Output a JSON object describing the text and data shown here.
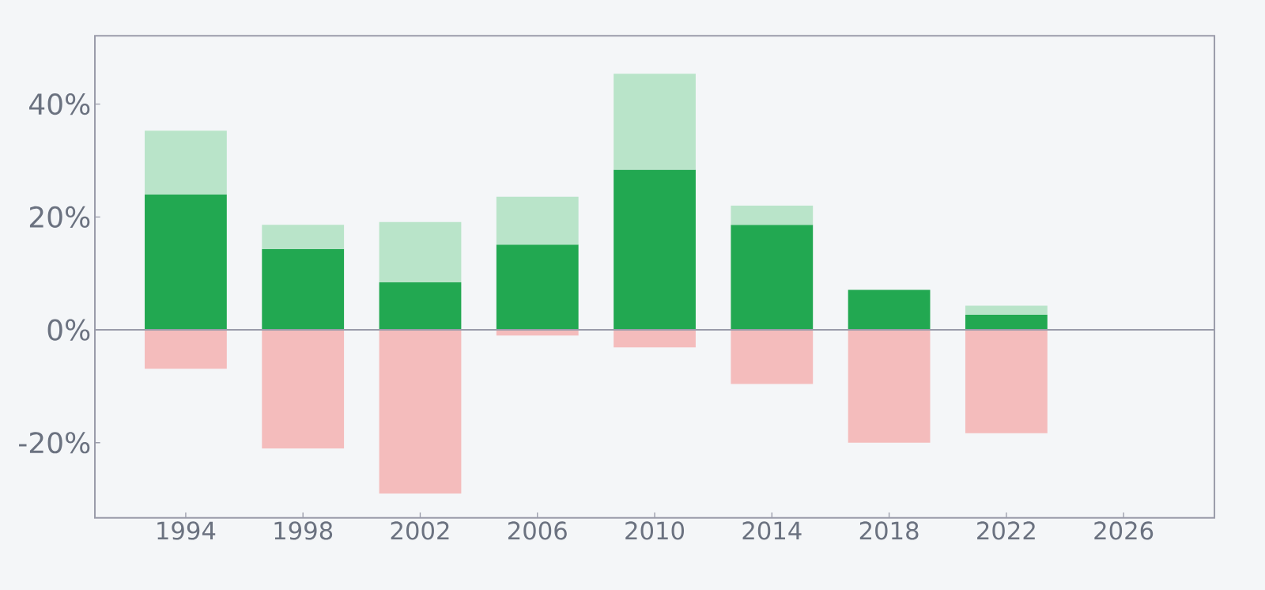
{
  "chart_data": {
    "type": "bar",
    "stacked": true,
    "x": [
      1994,
      1998,
      2002,
      2006,
      2010,
      2014,
      2018,
      2022
    ],
    "series": [
      {
        "color": "#22a851",
        "values": [
          24.0,
          14.3,
          8.4,
          15.1,
          28.4,
          18.6,
          7.1,
          2.7
        ]
      },
      {
        "color": "#b9e4c9",
        "values": [
          11.3,
          4.3,
          10.7,
          8.5,
          17.0,
          3.4,
          null,
          1.6
        ]
      },
      {
        "color": "#f4bcbc",
        "values": [
          -6.9,
          -21.0,
          -29.0,
          -1.0,
          -3.1,
          -9.6,
          -20.0,
          -18.3
        ]
      }
    ],
    "xlim": [
      1990.9,
      2029.1
    ],
    "ylim": [
      -33.3,
      52.1
    ],
    "xticks": [
      1994,
      1998,
      2002,
      2006,
      2010,
      2014,
      2018,
      2022,
      2026
    ],
    "yticks": [
      {
        "value": -20,
        "label": "-20%"
      },
      {
        "value": 0,
        "label": "0%"
      },
      {
        "value": 20,
        "label": "20%"
      },
      {
        "value": 40,
        "label": "40%"
      }
    ]
  }
}
